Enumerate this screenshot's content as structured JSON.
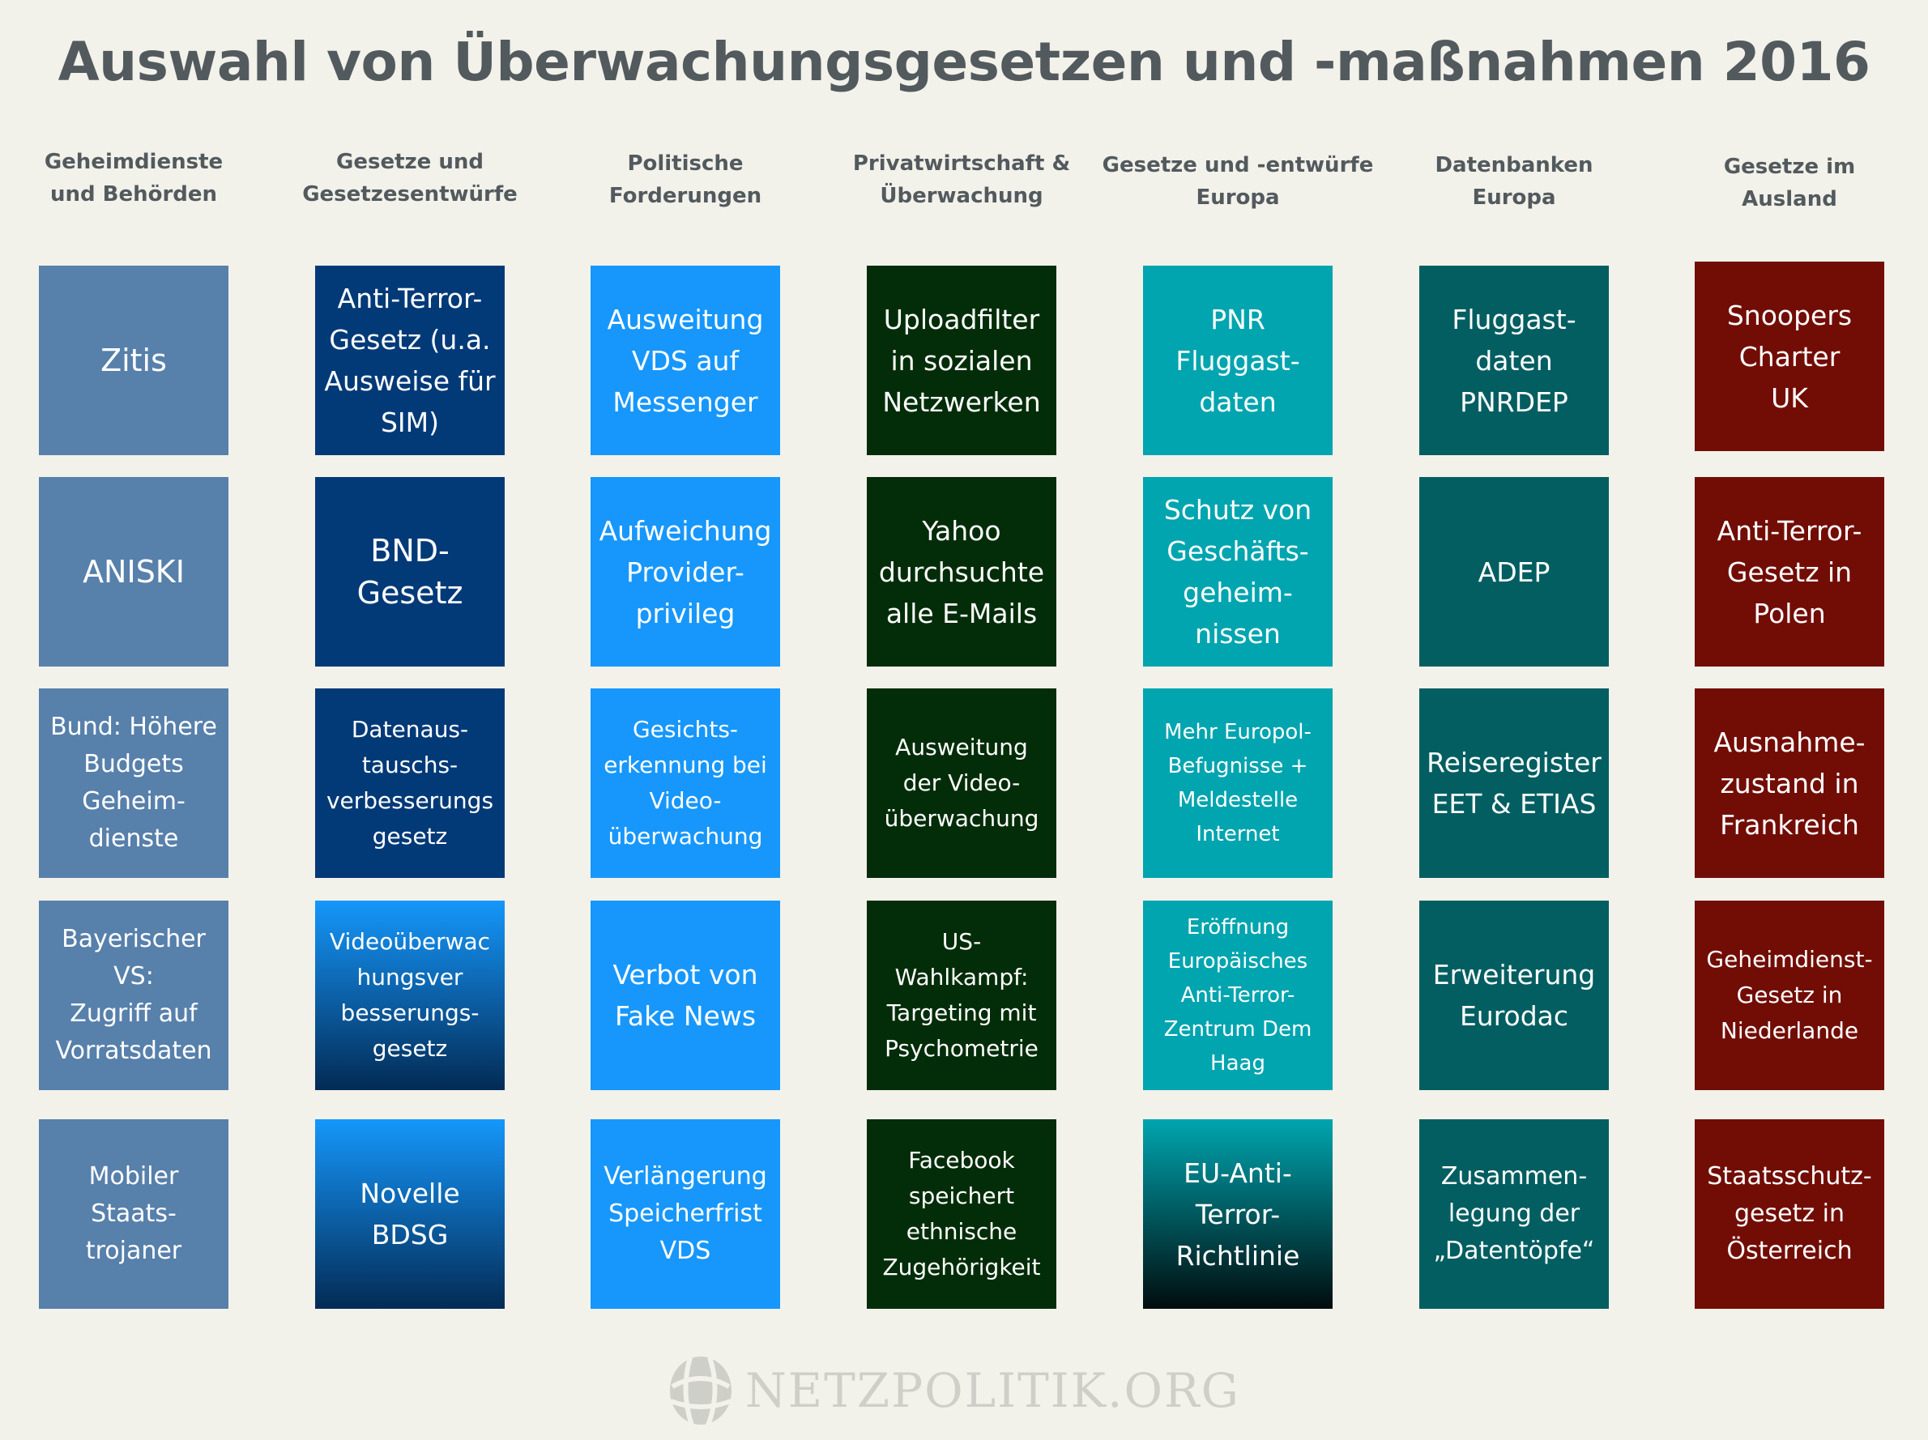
{
  "title": "Auswahl von Überwachungsgesetzen und -maßnahmen 2016",
  "colors": {
    "background": "#f2f1ea",
    "title_text": "#525a5e",
    "tile_text": "#ffffff"
  },
  "columns": [
    {
      "header": "Geheimdienste\nund Behörden",
      "color": "#5780ab",
      "tiles": [
        {
          "text": "Zitis",
          "size": "fs-l"
        },
        {
          "text": "ANISKI",
          "size": "fs-l"
        },
        {
          "text": "Bund: Höhere\nBudgets\nGeheim-\ndienste",
          "size": "fs-s"
        },
        {
          "text": "Bayerischer\nVS:\nZugriff auf\nVorratsdaten",
          "size": "fs-s"
        },
        {
          "text": "Mobiler\nStaats-\ntrojaner",
          "size": "fs-s"
        }
      ]
    },
    {
      "header": "Gesetze und\nGesetzesentwürfe",
      "color": "#023a78",
      "tiles": [
        {
          "text": "Anti-Terror-\nGesetz (u.a.\nAusweise für\nSIM)",
          "size": "fs-m"
        },
        {
          "text": "BND-\nGesetz",
          "size": "fs-l"
        },
        {
          "text": "Datenaus-\ntauschs-\nverbesserungs\ngesetz",
          "size": "fs-xs"
        },
        {
          "text": "Videoüberwac\nhungsver\nbesserungs-\ngesetz",
          "size": "fs-xs",
          "gradient": true
        },
        {
          "text": "Novelle\nBDSG",
          "size": "fs-m",
          "gradient": true
        }
      ],
      "gradient": {
        "from": "#1597fb",
        "to": "#032b55"
      }
    },
    {
      "header": "Politische\nForderungen",
      "color": "#1797fb",
      "tiles": [
        {
          "text": "Ausweitung\nVDS auf\nMessenger",
          "size": "fs-m"
        },
        {
          "text": "Aufweichung\nProvider-\nprivileg",
          "size": "fs-m"
        },
        {
          "text": "Gesichts-\nerkennung bei\nVideo-\nüberwachung",
          "size": "fs-xs"
        },
        {
          "text": "Verbot von\nFake News",
          "size": "fs-m"
        },
        {
          "text": "Verlängerung\nSpeicherfrist\nVDS",
          "size": "fs-s"
        }
      ]
    },
    {
      "header": "Privatwirtschaft &\nÜberwachung",
      "color": "#032d09",
      "tiles": [
        {
          "text": "Uploadfilter\nin sozialen\nNetzwerken",
          "size": "fs-m"
        },
        {
          "text": "Yahoo\ndurchsuchte\nalle E-Mails",
          "size": "fs-m"
        },
        {
          "text": "Ausweitung\nder Video-\nüberwachung",
          "size": "fs-xs"
        },
        {
          "text": "US-\nWahlkampf:\nTargeting mit\nPsychometrie",
          "size": "fs-xs"
        },
        {
          "text": "Facebook\nspeichert\nethnische\nZugehörigkeit",
          "size": "fs-xs"
        }
      ]
    },
    {
      "header": "Gesetze und -entwürfe\nEuropa",
      "color": "#00a5af",
      "tiles": [
        {
          "text": "PNR\nFluggast-\ndaten",
          "size": "fs-m"
        },
        {
          "text": "Schutz von\nGeschäfts-\ngeheim-\nnissen",
          "size": "fs-m"
        },
        {
          "text": "Mehr Europol-\nBefugnisse +\nMeldestelle\nInternet",
          "size": "fs-xxs"
        },
        {
          "text": "Eröffnung\nEuropäisches\nAnti-Terror-\nZentrum Dem\nHaag",
          "size": "fs-xxs"
        },
        {
          "text": "EU-Anti-\nTerror-\nRichtlinie",
          "size": "fs-m",
          "gradient": true
        }
      ],
      "gradient": {
        "from": "#00a5af",
        "to": "#010c0e"
      }
    },
    {
      "header": "Datenbanken\nEuropa",
      "color": "#025e61",
      "tiles": [
        {
          "text": "Fluggast-\ndaten\nPNRDEP",
          "size": "fs-m"
        },
        {
          "text": "ADEP",
          "size": "fs-m"
        },
        {
          "text": "Reiseregister\nEET & ETIAS",
          "size": "fs-m"
        },
        {
          "text": "Erweiterung\nEurodac",
          "size": "fs-m"
        },
        {
          "text": "Zusammen-\nlegung der\n„Datentöpfe“",
          "size": "fs-s"
        }
      ]
    },
    {
      "header": "Gesetze im\nAusland",
      "color": "#720d06",
      "tiles": [
        {
          "text": "Snoopers\nCharter\nUK",
          "size": "fs-m"
        },
        {
          "text": "Anti-Terror-\nGesetz in\nPolen",
          "size": "fs-m"
        },
        {
          "text": "Ausnahme-\nzustand in\nFrankreich",
          "size": "fs-m"
        },
        {
          "text": "Geheimdienst-\nGesetz in\nNiederlande",
          "size": "fs-xs"
        },
        {
          "text": "Staatsschutz-\ngesetz in\nÖsterreich",
          "size": "fs-s"
        }
      ]
    }
  ],
  "footer": {
    "logo_icon": "globe-icon",
    "logo_text": "NETZPOLITIK.ORG",
    "logo_color": "#cfcfca"
  }
}
